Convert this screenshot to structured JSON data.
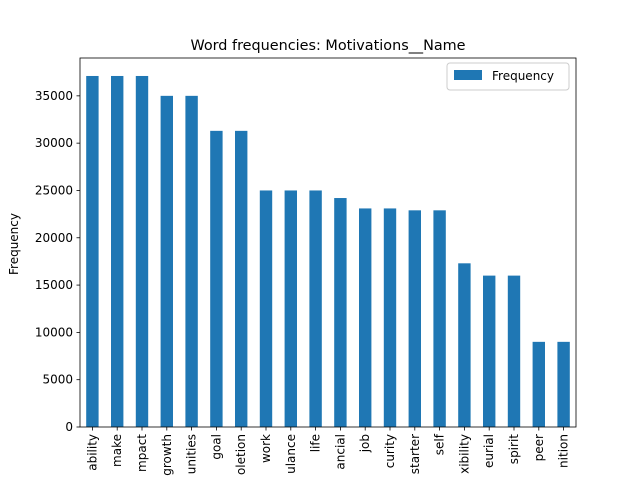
{
  "chart_data": {
    "type": "bar",
    "title": "Word frequencies: Motivations__Name",
    "xlabel": "",
    "ylabel": "Frequency",
    "ylim": [
      0,
      39000
    ],
    "yticks": [
      0,
      5000,
      10000,
      15000,
      20000,
      25000,
      30000,
      35000
    ],
    "grid": false,
    "legend_position": "top-right",
    "categories": [
      "ability",
      "make",
      "mpact",
      "growth",
      "unities",
      "goal",
      "oletion",
      "work",
      "ulance",
      "life",
      "ancial",
      "job",
      "curity",
      "starter",
      "self",
      "xibility",
      "eurial",
      "spirit",
      "peer",
      "nition"
    ],
    "series": [
      {
        "name": "Frequency",
        "color": "#1f77b4",
        "values": [
          37100,
          37100,
          37100,
          35000,
          35000,
          31300,
          31300,
          25000,
          25000,
          25000,
          24200,
          23100,
          23100,
          22900,
          22900,
          17300,
          16000,
          16000,
          9000,
          9000
        ]
      }
    ]
  }
}
